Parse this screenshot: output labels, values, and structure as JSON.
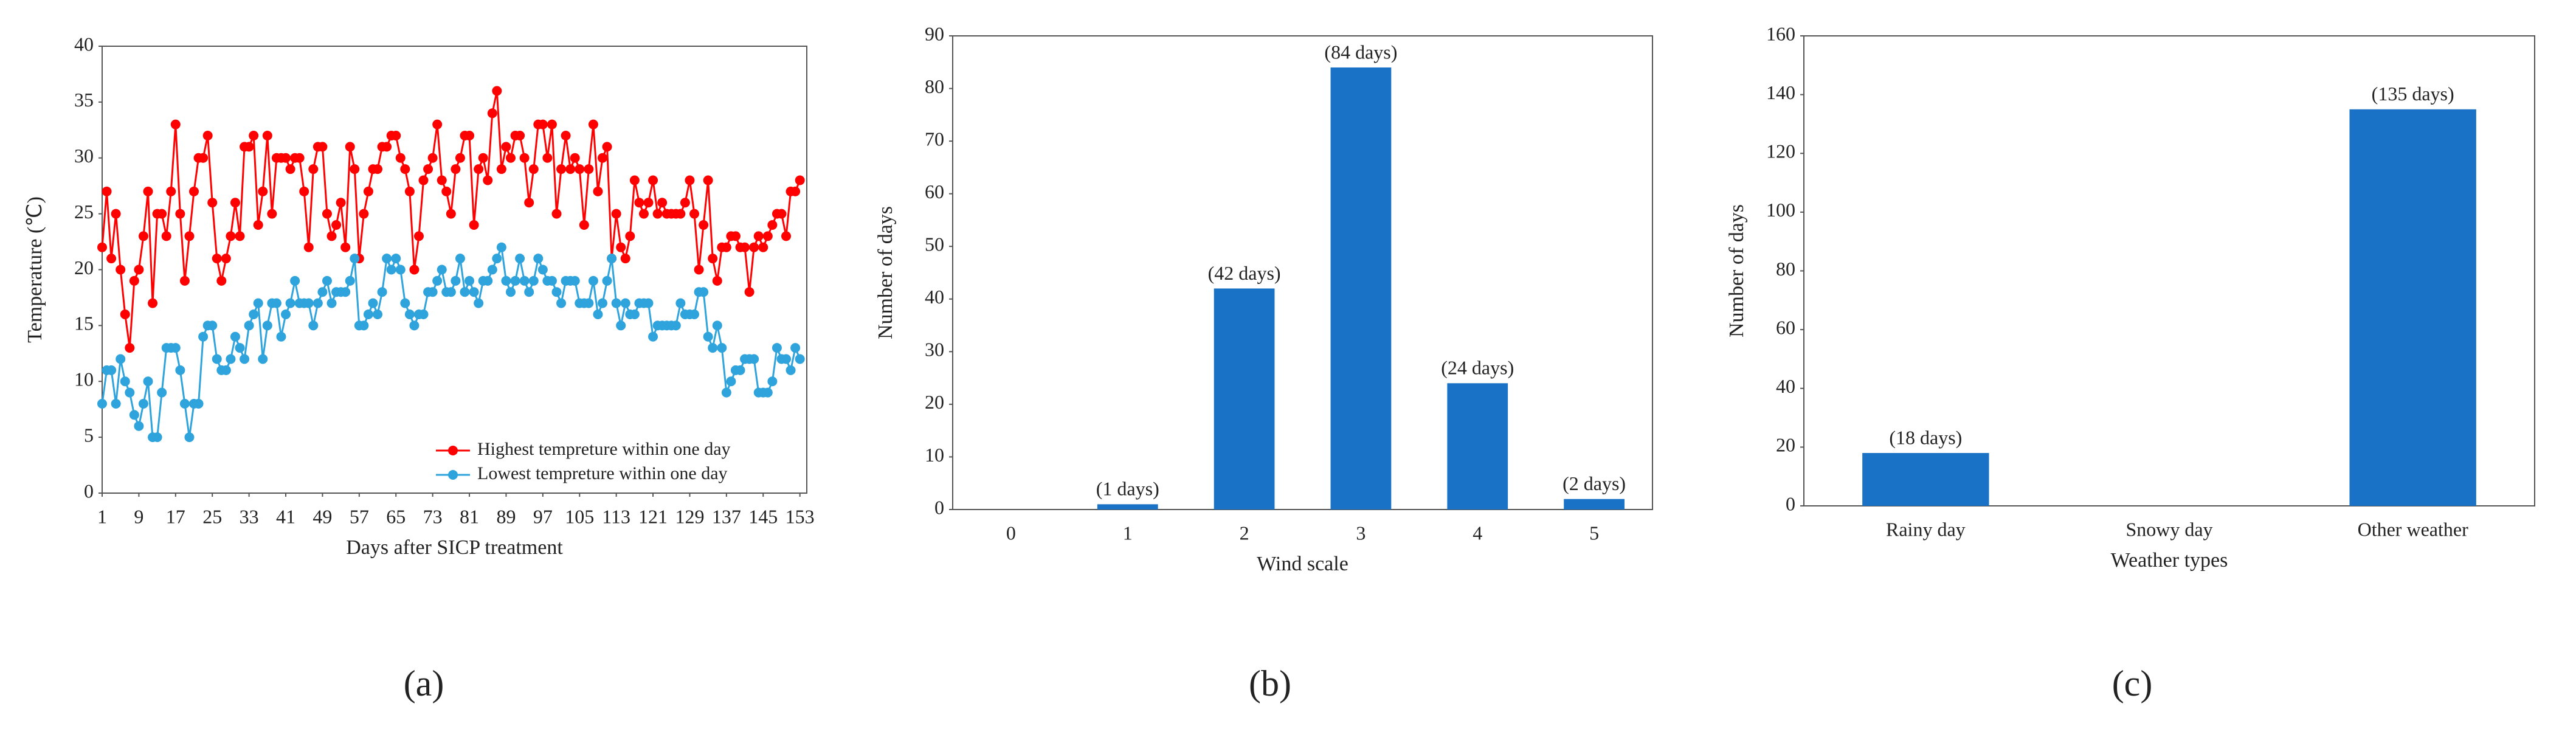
{
  "chart_data": [
    {
      "type": "line",
      "panel_label": "(a)",
      "xlabel": "Days after SICP treatment",
      "ylabel": "Temperature (℃)",
      "x": [
        1,
        2,
        3,
        4,
        5,
        6,
        7,
        8,
        9,
        10,
        11,
        12,
        13,
        14,
        15,
        16,
        17,
        18,
        19,
        20,
        21,
        22,
        23,
        24,
        25,
        26,
        27,
        28,
        29,
        30,
        31,
        32,
        33,
        34,
        35,
        36,
        37,
        38,
        39,
        40,
        41,
        42,
        43,
        44,
        45,
        46,
        47,
        48,
        49,
        50,
        51,
        52,
        53,
        54,
        55,
        56,
        57,
        58,
        59,
        60,
        61,
        62,
        63,
        64,
        65,
        66,
        67,
        68,
        69,
        70,
        71,
        72,
        73,
        74,
        75,
        76,
        77,
        78,
        79,
        80,
        81,
        82,
        83,
        84,
        85,
        86,
        87,
        88,
        89,
        90,
        91,
        92,
        93,
        94,
        95,
        96,
        97,
        98,
        99,
        100,
        101,
        102,
        103,
        104,
        105,
        106,
        107,
        108,
        109,
        110,
        111,
        112,
        113,
        114,
        115,
        116,
        117,
        118,
        119,
        120,
        121,
        122,
        123,
        124,
        125,
        126,
        127,
        128,
        129,
        130,
        131,
        132,
        133,
        134,
        135,
        136,
        137,
        138,
        139,
        140,
        141,
        142,
        143,
        144,
        145,
        146,
        147,
        148,
        149,
        150,
        151,
        152,
        153
      ],
      "series": [
        {
          "name": "Highest tempreture within one day",
          "color": "#ff0000",
          "values": [
            22,
            27,
            21,
            25,
            20,
            16,
            13,
            19,
            20,
            23,
            27,
            17,
            25,
            25,
            23,
            27,
            33,
            25,
            19,
            23,
            27,
            30,
            30,
            32,
            26,
            21,
            19,
            21,
            23,
            26,
            23,
            31,
            31,
            32,
            24,
            27,
            32,
            25,
            30,
            30,
            30,
            29,
            30,
            30,
            27,
            22,
            29,
            31,
            31,
            25,
            23,
            24,
            26,
            22,
            31,
            29,
            21,
            25,
            27,
            29,
            29,
            31,
            31,
            32,
            32,
            30,
            29,
            27,
            20,
            23,
            28,
            29,
            30,
            33,
            28,
            27,
            25,
            29,
            30,
            32,
            32,
            24,
            29,
            30,
            28,
            34,
            36,
            29,
            31,
            30,
            32,
            32,
            30,
            26,
            29,
            33,
            33,
            30,
            33,
            25,
            29,
            32,
            29,
            30,
            29,
            24,
            29,
            33,
            27,
            30,
            31,
            21,
            25,
            22,
            21,
            23,
            28,
            26,
            25,
            26,
            28,
            25,
            26,
            25,
            25,
            25,
            25,
            26,
            28,
            25,
            20,
            24,
            28,
            21,
            19,
            22,
            22,
            23,
            23,
            22,
            22,
            18,
            22,
            23,
            22,
            23,
            24,
            25,
            25,
            23,
            27,
            27,
            28
          ]
        },
        {
          "name": "Lowest tempreture within one day",
          "color": "#2ea3dc",
          "values": [
            8,
            11,
            11,
            8,
            12,
            10,
            9,
            7,
            6,
            8,
            10,
            5,
            5,
            9,
            13,
            13,
            13,
            11,
            8,
            5,
            8,
            8,
            14,
            15,
            15,
            12,
            11,
            11,
            12,
            14,
            13,
            12,
            15,
            16,
            17,
            12,
            15,
            17,
            17,
            14,
            16,
            17,
            19,
            17,
            17,
            17,
            15,
            17,
            18,
            19,
            17,
            18,
            18,
            18,
            19,
            21,
            15,
            15,
            16,
            17,
            16,
            18,
            21,
            20,
            21,
            20,
            17,
            16,
            15,
            16,
            16,
            18,
            18,
            19,
            20,
            18,
            18,
            19,
            21,
            18,
            19,
            18,
            17,
            19,
            19,
            20,
            21,
            22,
            19,
            18,
            19,
            21,
            19,
            18,
            19,
            21,
            20,
            19,
            19,
            18,
            17,
            19,
            19,
            19,
            17,
            17,
            17,
            19,
            16,
            17,
            19,
            21,
            17,
            15,
            17,
            16,
            16,
            17,
            17,
            17,
            14,
            15,
            15,
            15,
            15,
            15,
            17,
            16,
            16,
            16,
            18,
            18,
            14,
            13,
            15,
            13,
            9,
            10,
            11,
            11,
            12,
            12,
            12,
            9,
            9,
            9,
            10,
            13,
            12,
            12,
            11,
            13,
            12
          ]
        }
      ],
      "xlim": [
        1,
        154.5
      ],
      "xticks": [
        1,
        9,
        17,
        25,
        33,
        41,
        49,
        57,
        65,
        73,
        81,
        89,
        97,
        105,
        113,
        121,
        129,
        137,
        145,
        153
      ],
      "ylim": [
        0,
        40
      ],
      "yticks": [
        0,
        5,
        10,
        15,
        20,
        25,
        30,
        35,
        40
      ],
      "grid": false,
      "legend": "lower right"
    },
    {
      "type": "bar",
      "panel_label": "(b)",
      "xlabel": "Wind scale",
      "ylabel": "Number of days",
      "categories": [
        "0",
        "1",
        "2",
        "3",
        "4",
        "5"
      ],
      "values": [
        0,
        1,
        42,
        84,
        24,
        2
      ],
      "value_labels": [
        null,
        "(1 days)",
        "(42 days)",
        "(84 days)",
        "(24 days)",
        "(2 days)"
      ],
      "color": "#1a72c6",
      "ylim": [
        0,
        90
      ],
      "yticks": [
        0,
        10,
        20,
        30,
        40,
        50,
        60,
        70,
        80,
        90
      ],
      "grid": false
    },
    {
      "type": "bar",
      "panel_label": "(c)",
      "xlabel": "Weather types",
      "ylabel": "Number of days",
      "categories": [
        "Rainy day",
        "Snowy day",
        "Other weather"
      ],
      "values": [
        18,
        0,
        135
      ],
      "value_labels": [
        "(18 days)",
        null,
        "(135 days)"
      ],
      "color": "#1a72c6",
      "ylim": [
        0,
        160
      ],
      "yticks": [
        0,
        20,
        40,
        60,
        80,
        100,
        120,
        140,
        160
      ],
      "grid": false
    }
  ]
}
